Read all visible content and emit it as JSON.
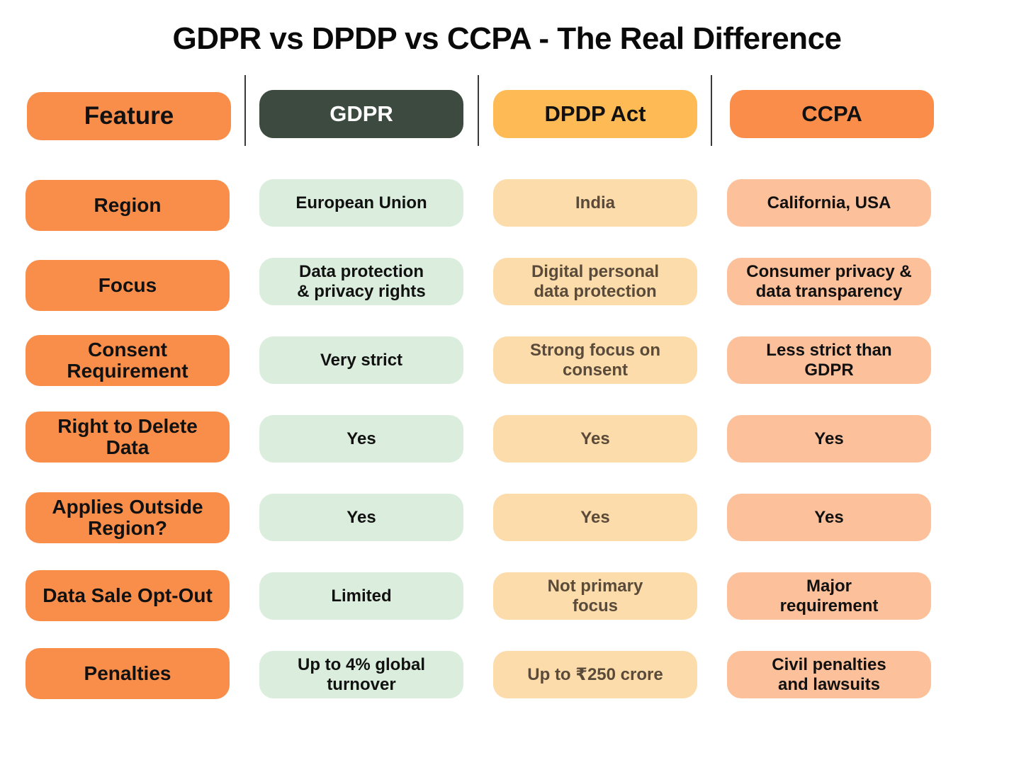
{
  "title": "GDPR vs DPDP vs CCPA - The Real Difference",
  "colors": {
    "feature": "#f98e4b",
    "gdpr_header": "#3c4a40",
    "dpdp_header": "#fdba55",
    "ccpa_header": "#fa8d4a",
    "gdpr_cell": "#dbeedd",
    "dpdp_cell": "#fcdcaa",
    "ccpa_cell": "#fcc09b"
  },
  "headers": {
    "feature": "Feature",
    "gdpr": "GDPR",
    "dpdp": "DPDP Act",
    "ccpa": "CCPA"
  },
  "rows": [
    {
      "feature": "Region",
      "gdpr": "European Union",
      "dpdp": "India",
      "ccpa": "California, USA"
    },
    {
      "feature": "Focus",
      "gdpr": "Data protection & privacy rights",
      "dpdp": "Digital personal data protection",
      "ccpa": "Consumer privacy & data transparency"
    },
    {
      "feature": "Consent Requirement",
      "gdpr": "Very strict",
      "dpdp": "Strong focus on consent",
      "ccpa": "Less strict than GDPR"
    },
    {
      "feature": "Right to Delete Data",
      "gdpr": "Yes",
      "dpdp": "Yes",
      "ccpa": "Yes"
    },
    {
      "feature": "Applies Outside Region?",
      "gdpr": "Yes",
      "dpdp": "Yes",
      "ccpa": "Yes"
    },
    {
      "feature": "Data Sale Opt-Out",
      "gdpr": "Limited",
      "dpdp": "Not primary focus",
      "ccpa": "Major requirement"
    },
    {
      "feature": "Penalties",
      "gdpr": "Up to 4% global turnover",
      "dpdp": "Up to ₹250 crore",
      "ccpa": "Civil penalties and lawsuits"
    }
  ]
}
